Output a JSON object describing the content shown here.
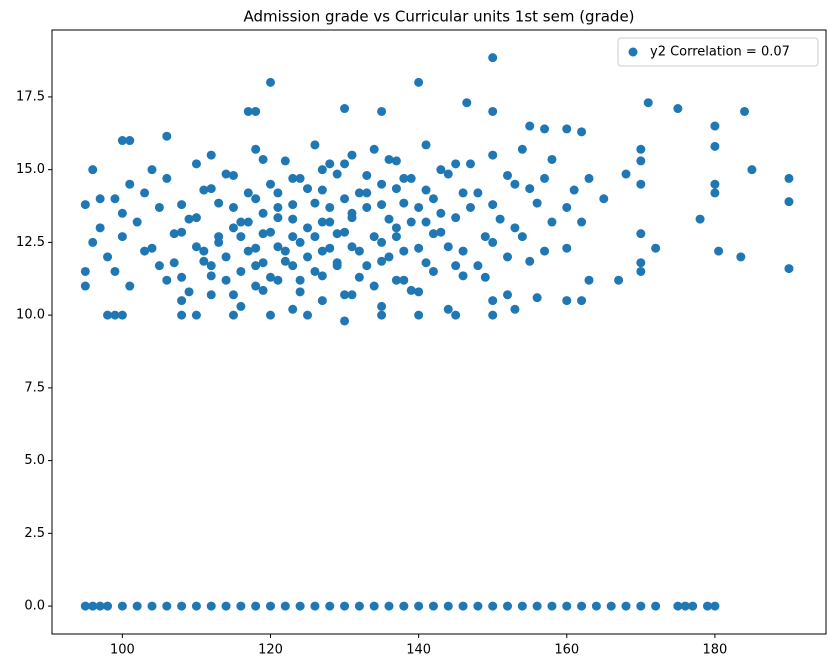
{
  "chart_data": {
    "type": "scatter",
    "title": "Admission grade vs Curricular units 1st sem (grade)",
    "xlim": [
      90.5,
      195
    ],
    "ylim": [
      -0.96,
      19.8
    ],
    "xticks": [
      100,
      120,
      140,
      160,
      180
    ],
    "yticks": [
      {
        "value": 0,
        "label": "0.0"
      },
      2.5,
      {
        "value": 5,
        "label": "5.0"
      },
      7.5,
      {
        "value": 10,
        "label": "10.0"
      },
      12.5,
      {
        "value": 15,
        "label": "15.0"
      },
      17.5
    ],
    "legend": "upper right",
    "series": [
      {
        "name": "y2 Correlation = 0.07",
        "color": "#1f77b4",
        "x": [
          112,
          118,
          122,
          126,
          128,
          131,
          134,
          137,
          141,
          145,
          150,
          154,
          104,
          110,
          115,
          119,
          123,
          127,
          130,
          133,
          136,
          139,
          143,
          147,
          152,
          158,
          163,
          101,
          106,
          111,
          114,
          117,
          120,
          124,
          127,
          129,
          132,
          135,
          138,
          141,
          144,
          148,
          153,
          157,
          161,
          168,
          99,
          103,
          108,
          112,
          115,
          118,
          121,
          123,
          125,
          128,
          130,
          133,
          135,
          137,
          140,
          142,
          146,
          150,
          155,
          160,
          100,
          105,
          109,
          113,
          116,
          119,
          121,
          123,
          126,
          128,
          131,
          133,
          136,
          138,
          141,
          143,
          147,
          151,
          156,
          162,
          97,
          102,
          107,
          110,
          113,
          115,
          117,
          119,
          121,
          123,
          125,
          127,
          129,
          131,
          134,
          137,
          139,
          142,
          145,
          149,
          153,
          158,
          96,
          100,
          104,
          108,
          111,
          113,
          116,
          118,
          120,
          122,
          124,
          126,
          128,
          130,
          132,
          135,
          137,
          140,
          143,
          146,
          150,
          154,
          160,
          98,
          103,
          107,
          110,
          112,
          114,
          117,
          119,
          121,
          123,
          125,
          127,
          129,
          131,
          133,
          136,
          138,
          141,
          144,
          148,
          152,
          157,
          99,
          105,
          108,
          111,
          114,
          116,
          118,
          120,
          122,
          124,
          126,
          129,
          132,
          135,
          138,
          142,
          145,
          149,
          155,
          163,
          101,
          106,
          109,
          112,
          115,
          118,
          121,
          124,
          127,
          130,
          134,
          137,
          140,
          146,
          152,
          108,
          112,
          116,
          119,
          123,
          127,
          131,
          135,
          139,
          144,
          150,
          150,
          120,
          140,
          171,
          175,
          184,
          190,
          190,
          190,
          185,
          180,
          180,
          180,
          180,
          180.5,
          183.5,
          178,
          172,
          170,
          170,
          170,
          170,
          170,
          170,
          167,
          165,
          106,
          100,
          101,
          117,
          118,
          130,
          135,
          146.5,
          150,
          155,
          160,
          162,
          157,
          95,
          95,
          95,
          96,
          97,
          98,
          99,
          100,
          108,
          110,
          115,
          120,
          125,
          130,
          135,
          140,
          145,
          150,
          153,
          160,
          162,
          156,
          95,
          96,
          97,
          98,
          100,
          102,
          104,
          106,
          108,
          110,
          112,
          114,
          116,
          118,
          120,
          122,
          124,
          126,
          128,
          130,
          132,
          134,
          136,
          138,
          140,
          142,
          144,
          146,
          148,
          150,
          152,
          154,
          156,
          158,
          160,
          162,
          164,
          166,
          168,
          170,
          172,
          175,
          176,
          177,
          179,
          180
        ],
        "values": [
          15.5,
          15.7,
          15.3,
          15.85,
          15.2,
          15.5,
          15.7,
          15.3,
          15.85,
          15.2,
          15.5,
          15.7,
          15,
          15.2,
          14.8,
          15.35,
          14.7,
          15,
          15.2,
          14.8,
          15.35,
          14.7,
          15,
          15.2,
          14.8,
          15.35,
          14.7,
          14.5,
          14.7,
          14.3,
          14.85,
          14.2,
          14.5,
          14.7,
          14.3,
          14.85,
          14.2,
          14.5,
          14.7,
          14.3,
          14.85,
          14.2,
          14.5,
          14.7,
          14.3,
          14.85,
          14,
          14.2,
          13.8,
          14.35,
          13.7,
          14,
          14.2,
          13.8,
          14.35,
          13.7,
          14,
          14.2,
          13.8,
          14.35,
          13.7,
          14,
          14.2,
          13.8,
          14.35,
          13.7,
          13.5,
          13.7,
          13.3,
          13.85,
          13.2,
          13.5,
          13.7,
          13.3,
          13.85,
          13.2,
          13.5,
          13.7,
          13.3,
          13.85,
          13.2,
          13.5,
          13.7,
          13.3,
          13.85,
          13.2,
          13,
          13.2,
          12.8,
          13.35,
          12.7,
          13,
          13.2,
          12.8,
          13.35,
          12.7,
          13,
          13.2,
          12.8,
          13.35,
          12.7,
          13,
          13.2,
          12.8,
          13.35,
          12.7,
          13,
          13.2,
          12.5,
          12.7,
          12.3,
          12.85,
          12.2,
          12.5,
          12.7,
          12.3,
          12.85,
          12.2,
          12.5,
          12.7,
          12.3,
          12.85,
          12.2,
          12.5,
          12.7,
          12.3,
          12.85,
          12.2,
          12.5,
          12.7,
          12.3,
          12,
          12.2,
          11.8,
          12.35,
          11.7,
          12,
          12.2,
          11.8,
          12.35,
          11.7,
          12,
          12.2,
          11.8,
          12.35,
          11.7,
          12,
          12.2,
          11.8,
          12.35,
          11.7,
          12,
          12.2,
          11.5,
          11.7,
          11.3,
          11.85,
          11.2,
          11.5,
          11.7,
          11.3,
          11.85,
          11.2,
          11.5,
          11.7,
          11.3,
          11.85,
          11.2,
          11.5,
          11.7,
          11.3,
          11.85,
          11.2,
          11,
          11.2,
          10.8,
          11.35,
          10.7,
          11,
          11.2,
          10.8,
          11.35,
          10.7,
          11,
          11.2,
          10.8,
          11.35,
          10.7,
          10.5,
          10.7,
          10.3,
          10.85,
          10.2,
          10.5,
          10.7,
          10.3,
          10.85,
          10.2,
          10.5,
          18.85,
          18,
          18,
          17.3,
          17.1,
          17,
          14.7,
          13.9,
          11.6,
          15,
          16.5,
          15.8,
          14.5,
          14.2,
          12.2,
          12,
          13.3,
          12.3,
          11.5,
          11.8,
          12.8,
          14.5,
          15.3,
          15.7,
          11.2,
          14,
          16.15,
          16,
          16,
          17,
          17,
          17.1,
          17,
          17.3,
          17,
          16.5,
          16.4,
          16.3,
          16.4,
          13.8,
          11,
          11.5,
          15,
          14,
          10,
          10,
          10,
          10,
          10,
          10,
          10,
          10,
          9.8,
          10,
          10,
          10,
          10,
          10.2,
          10.5,
          10.5,
          10.6,
          0,
          0,
          0,
          0,
          0,
          0,
          0,
          0,
          0,
          0,
          0,
          0,
          0,
          0,
          0,
          0,
          0,
          0,
          0,
          0,
          0,
          0,
          0,
          0,
          0,
          0,
          0,
          0,
          0,
          0,
          0,
          0,
          0,
          0,
          0,
          0,
          0,
          0,
          0,
          0,
          0,
          0,
          0,
          0,
          0,
          0
        ]
      }
    ]
  }
}
